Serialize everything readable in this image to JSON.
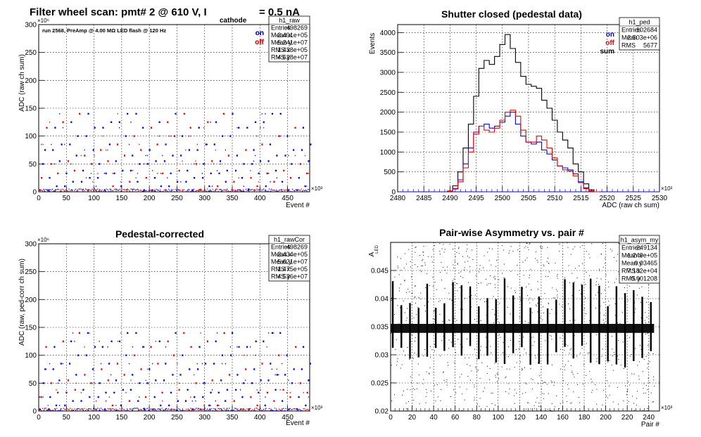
{
  "suptitle": {
    "main": "Filter wheel scan: pmt#   2 @   610 V, I",
    "sub": "cathode",
    "tail": "= 0.5 nA"
  },
  "chart_data": [
    {
      "id": "raw",
      "type": "scatter",
      "title": "",
      "run_note": "run 2568, PreAmp @ 4.00 MΩ  LED flash @  120 Hz",
      "xlabel": "Event #",
      "ylabel": "ADC (raw ch sum)",
      "x_exponent": "×10³",
      "y_exponent": "×10⁶",
      "xlim": [
        0,
        490
      ],
      "ylim": [
        0,
        300
      ],
      "xticks": [
        0,
        50,
        100,
        150,
        200,
        250,
        300,
        350,
        400,
        450
      ],
      "yticks": [
        0,
        50,
        100,
        150,
        200,
        250,
        300
      ],
      "legend": [
        {
          "label": "on",
          "color": "#0000ee"
        },
        {
          "label": "off",
          "color": "#ee0000"
        }
      ],
      "stats": {
        "name": "h1_raw",
        "rows": [
          [
            "Entries",
            "498269"
          ],
          [
            "Mean x",
            "2.491e+05"
          ],
          [
            "Mean y",
            "5.241e+07"
          ],
          [
            "RMS x",
            "1.438e+05"
          ],
          [
            "RMS y",
            "4.628e+07"
          ]
        ]
      },
      "band_levels": [
        3,
        10,
        18,
        25,
        33,
        38,
        50,
        55,
        65,
        75,
        85,
        100,
        115,
        125,
        140
      ],
      "cycle_period": 30,
      "step_period": 3
    },
    {
      "id": "ped",
      "type": "line",
      "title": "Shutter closed (pedestal data)",
      "xlabel": "ADC (raw ch sum)",
      "ylabel": "Events",
      "x_exponent": "×10³",
      "xlim": [
        2480,
        2530
      ],
      "ylim": [
        0,
        4200
      ],
      "xticks": [
        2480,
        2485,
        2490,
        2495,
        2500,
        2505,
        2510,
        2515,
        2520,
        2525,
        2530
      ],
      "yticks": [
        0,
        500,
        1000,
        1500,
        2000,
        2500,
        3000,
        3500,
        4000
      ],
      "legend": [
        {
          "label": "on",
          "color": "#0000ee"
        },
        {
          "label": "off",
          "color": "#ee0000"
        },
        {
          "label": "sum",
          "color": "#000000"
        }
      ],
      "stats": {
        "name": "h1_ped",
        "rows": [
          [
            "Entries",
            "102684"
          ],
          [
            "Mean",
            "2.503e+06"
          ],
          [
            "RMS",
            "5677"
          ]
        ]
      },
      "x": [
        2490,
        2491,
        2492,
        2493,
        2494,
        2495,
        2496,
        2497,
        2498,
        2499,
        2500,
        2501,
        2502,
        2503,
        2504,
        2505,
        2506,
        2507,
        2508,
        2509,
        2510,
        2511,
        2512,
        2513,
        2514,
        2515,
        2516,
        2517,
        2518
      ],
      "series": [
        {
          "name": "sum",
          "color": "#000000",
          "values": [
            20,
            150,
            500,
            1100,
            1700,
            2400,
            3100,
            3300,
            3200,
            3400,
            3700,
            3950,
            3600,
            3250,
            2900,
            2700,
            2650,
            2600,
            2300,
            2100,
            1800,
            1500,
            1300,
            1100,
            700,
            500,
            200,
            50,
            0
          ]
        },
        {
          "name": "on",
          "color": "#0000ee",
          "values": [
            10,
            80,
            300,
            700,
            1100,
            1500,
            1650,
            1700,
            1600,
            1650,
            1750,
            1900,
            2000,
            1700,
            1400,
            1250,
            1200,
            1250,
            1050,
            950,
            800,
            650,
            600,
            550,
            450,
            250,
            100,
            20,
            0
          ]
        },
        {
          "name": "off",
          "color": "#ee0000",
          "values": [
            10,
            70,
            250,
            600,
            1000,
            1450,
            1650,
            1550,
            1500,
            1600,
            1800,
            2000,
            2050,
            1900,
            1550,
            1250,
            1250,
            1400,
            1300,
            1100,
            850,
            650,
            550,
            520,
            400,
            230,
            80,
            15,
            0
          ]
        }
      ]
    },
    {
      "id": "rawCor",
      "type": "scatter",
      "title": "Pedestal-corrected",
      "xlabel": "Event #",
      "ylabel": "ADC (raw, ped-corr ch sum)",
      "x_exponent": "×10³",
      "y_exponent": "×10⁶",
      "xlim": [
        0,
        490
      ],
      "ylim": [
        0,
        300
      ],
      "xticks": [
        0,
        50,
        100,
        150,
        200,
        250,
        300,
        350,
        400,
        450
      ],
      "yticks": [
        0,
        50,
        100,
        150,
        200,
        250,
        300
      ],
      "legend": [
        {
          "label": "on",
          "color": "#0000ee"
        },
        {
          "label": "off",
          "color": "#ee0000"
        }
      ],
      "stats": {
        "name": "h1_rawCor",
        "rows": [
          [
            "Entries",
            "498269"
          ],
          [
            "Mean x",
            "2.434e+05"
          ],
          [
            "Mean y",
            "5.621e+07"
          ],
          [
            "RMS x",
            "1.475e+05"
          ],
          [
            "RMS y",
            "4.536e+07"
          ]
        ]
      },
      "band_levels": [
        3,
        10,
        18,
        25,
        33,
        38,
        50,
        55,
        65,
        75,
        85,
        100,
        115,
        125,
        140
      ],
      "cycle_period": 30,
      "step_period": 3
    },
    {
      "id": "asym",
      "type": "scatter",
      "title": "Pair-wise Asymmetry vs. pair #",
      "xlabel": "Pair #",
      "ylabel": "A",
      "ylabel_sub": "LED",
      "x_exponent": "×10³",
      "xlim": [
        0,
        250
      ],
      "ylim": [
        0.02,
        0.05
      ],
      "xticks": [
        0,
        20,
        40,
        60,
        80,
        100,
        120,
        140,
        160,
        180,
        200,
        220,
        240
      ],
      "yticks": [
        0.02,
        0.025,
        0.03,
        0.035,
        0.04,
        0.045
      ],
      "stats": {
        "name": "h1_asym_my",
        "rows": [
          [
            "Entries",
            "249134"
          ],
          [
            "Mean x",
            "1.249e+05"
          ],
          [
            "Mean y",
            "0.03465"
          ],
          [
            "RMS x",
            "7.182e+04"
          ],
          [
            "RMS y",
            "0.001208"
          ]
        ]
      },
      "band_center": 0.0347,
      "band_halfwidth": 0.0008,
      "spike_x": [
        2,
        10,
        18,
        26,
        34,
        42,
        50,
        58,
        66,
        74,
        82,
        90,
        98,
        106,
        114,
        122,
        130,
        138,
        146,
        154,
        162,
        170,
        178,
        186,
        194,
        202,
        210,
        218,
        226,
        234,
        242
      ]
    }
  ]
}
